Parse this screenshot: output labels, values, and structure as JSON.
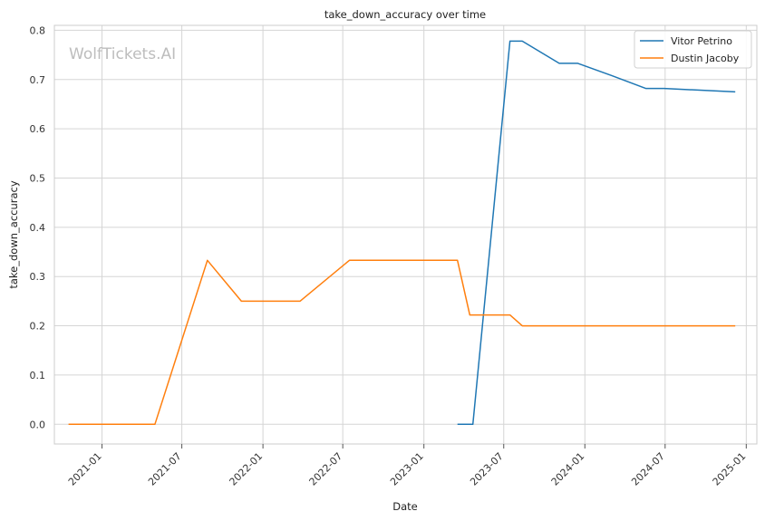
{
  "chart_data": {
    "type": "line",
    "title": "take_down_accuracy over time",
    "xlabel": "Date",
    "ylabel": "take_down_accuracy",
    "watermark": "WolfTickets.AI",
    "xlim": [
      "2020-09-15",
      "2025-01-25"
    ],
    "ylim": [
      -0.04,
      0.81
    ],
    "x_ticks": [
      "2021-01-01",
      "2021-07-01",
      "2022-01-01",
      "2022-07-01",
      "2023-01-01",
      "2023-07-01",
      "2024-01-01",
      "2024-07-01",
      "2025-01-01"
    ],
    "x_tick_labels": [
      "2021-01",
      "2021-07",
      "2022-01",
      "2022-07",
      "2023-01",
      "2023-07",
      "2024-01",
      "2024-07",
      "2025-01"
    ],
    "y_ticks": [
      0.0,
      0.1,
      0.2,
      0.3,
      0.4,
      0.5,
      0.6,
      0.7,
      0.8
    ],
    "y_tick_labels": [
      "0.0",
      "0.1",
      "0.2",
      "0.3",
      "0.4",
      "0.5",
      "0.6",
      "0.7",
      "0.8"
    ],
    "grid": true,
    "legend_position": "top-right",
    "series": [
      {
        "name": "Vitor Petrino",
        "color": "#1f77b4",
        "points": [
          {
            "x": "2023-03-18",
            "y": 0.0
          },
          {
            "x": "2023-04-22",
            "y": 0.0
          },
          {
            "x": "2023-07-15",
            "y": 0.778
          },
          {
            "x": "2023-08-12",
            "y": 0.778
          },
          {
            "x": "2023-11-04",
            "y": 0.733
          },
          {
            "x": "2023-12-16",
            "y": 0.733
          },
          {
            "x": "2024-03-02",
            "y": 0.708
          },
          {
            "x": "2024-05-18",
            "y": 0.682
          },
          {
            "x": "2024-06-29",
            "y": 0.682
          },
          {
            "x": "2024-12-07",
            "y": 0.675
          }
        ]
      },
      {
        "name": "Dustin Jacoby",
        "color": "#ff7f0e",
        "points": [
          {
            "x": "2020-10-17",
            "y": 0.0
          },
          {
            "x": "2021-05-01",
            "y": 0.0
          },
          {
            "x": "2021-08-28",
            "y": 0.333
          },
          {
            "x": "2021-11-13",
            "y": 0.25
          },
          {
            "x": "2022-03-26",
            "y": 0.25
          },
          {
            "x": "2022-07-16",
            "y": 0.333
          },
          {
            "x": "2023-03-18",
            "y": 0.333
          },
          {
            "x": "2023-04-15",
            "y": 0.222
          },
          {
            "x": "2023-07-15",
            "y": 0.222
          },
          {
            "x": "2023-08-12",
            "y": 0.2
          },
          {
            "x": "2024-12-07",
            "y": 0.2
          }
        ]
      }
    ]
  }
}
